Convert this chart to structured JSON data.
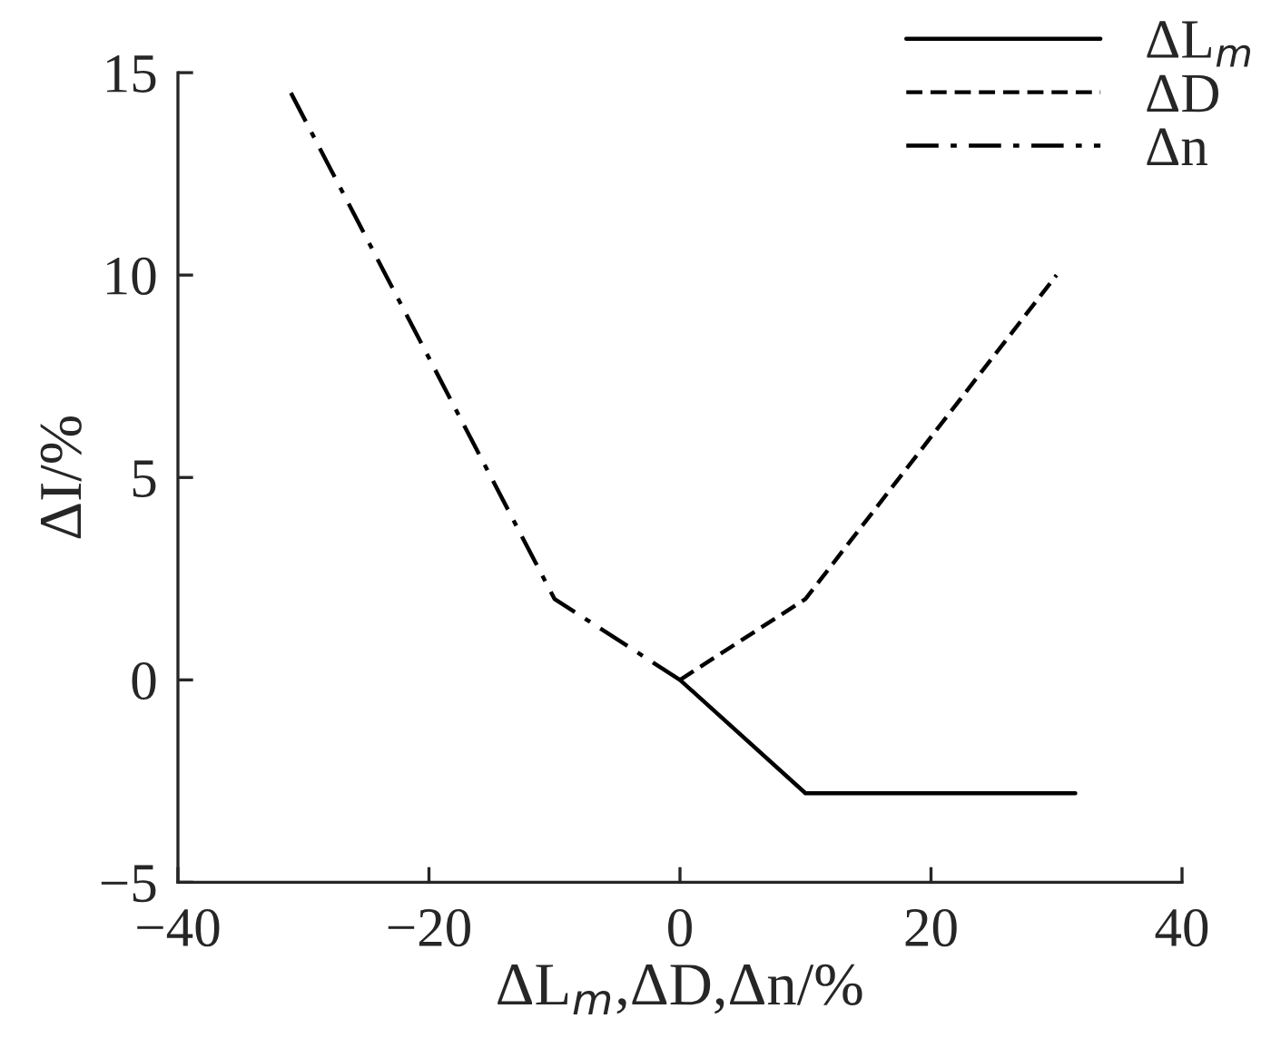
{
  "chart_data": {
    "type": "line",
    "xlabel": "ΔL$_{m}$,ΔD,Δn/%",
    "ylabel": "ΔI/%",
    "xlim": [
      -40,
      40
    ],
    "xticks": [
      -40,
      -20,
      0,
      20,
      40
    ],
    "ylim": [
      -5,
      15
    ],
    "yticks": [
      -5,
      0,
      5,
      10,
      15
    ],
    "grid": false,
    "legend": "top right",
    "marker": "none",
    "series": [
      {
        "name": "ΔL$_{m}$",
        "color": "#000000",
        "line_style": "solid",
        "x": [
          0,
          10,
          31.5
        ],
        "values": [
          0,
          -2.8,
          -2.8
        ]
      },
      {
        "name": "ΔD",
        "color": "#000000",
        "line_style": "dashed",
        "x": [
          0,
          10,
          30
        ],
        "values": [
          0,
          2,
          10
        ]
      },
      {
        "name": "Δn",
        "color": "#000000",
        "line_style": "dashdot",
        "x": [
          0,
          -10,
          -31
        ],
        "values": [
          0,
          2,
          14.5
        ]
      }
    ]
  }
}
